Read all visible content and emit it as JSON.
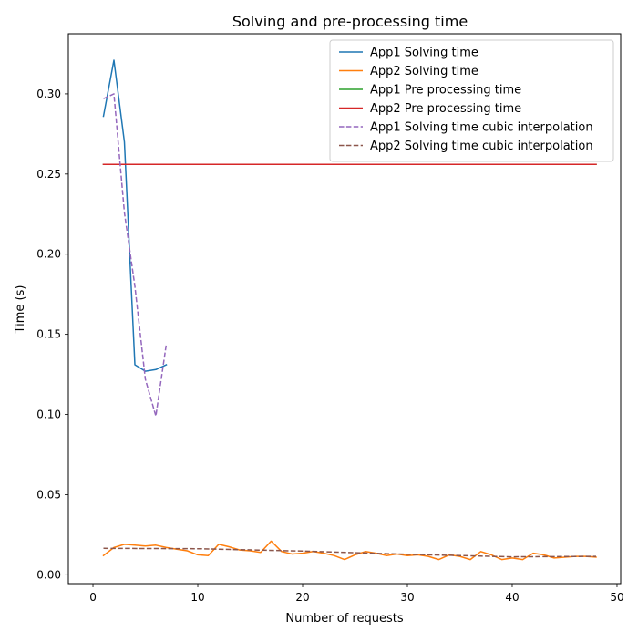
{
  "chart_data": {
    "type": "line",
    "title": "Solving and pre-processing time",
    "xlabel": "Number of requests",
    "ylabel": "Time (s)",
    "xlim": [
      -2.35,
      50.35
    ],
    "ylim": [
      -0.0055,
      0.3375
    ],
    "xticks": [
      0,
      10,
      20,
      30,
      40,
      50
    ],
    "yticks": [
      0.0,
      0.05,
      0.1,
      0.15,
      0.2,
      0.25,
      0.3
    ],
    "ytick_labels": [
      "0.00",
      "0.05",
      "0.10",
      "0.15",
      "0.20",
      "0.25",
      "0.30"
    ],
    "grid": false,
    "legend_position": "upper right",
    "series": [
      {
        "name": "App1 Solving time",
        "color": "#1f77b4",
        "dash": "solid",
        "x": [
          1,
          2,
          3,
          4,
          5,
          6,
          7
        ],
        "y": [
          0.286,
          0.321,
          0.27,
          0.131,
          0.127,
          0.128,
          0.131
        ]
      },
      {
        "name": "App2 Solving time",
        "color": "#ff7f0e",
        "dash": "solid",
        "x": [
          1,
          2,
          3,
          4,
          5,
          6,
          7,
          8,
          9,
          10,
          11,
          12,
          13,
          14,
          15,
          16,
          17,
          18,
          19,
          20,
          21,
          22,
          23,
          24,
          25,
          26,
          27,
          28,
          29,
          30,
          31,
          32,
          33,
          34,
          35,
          36,
          37,
          38,
          39,
          40,
          41,
          42,
          43,
          44,
          45,
          46,
          47,
          48
        ],
        "y": [
          0.012,
          0.017,
          0.019,
          0.0185,
          0.018,
          0.0185,
          0.017,
          0.016,
          0.015,
          0.0125,
          0.012,
          0.019,
          0.0175,
          0.0155,
          0.015,
          0.014,
          0.021,
          0.0145,
          0.013,
          0.0135,
          0.0145,
          0.0135,
          0.012,
          0.0095,
          0.0125,
          0.0145,
          0.0135,
          0.012,
          0.013,
          0.012,
          0.0125,
          0.0115,
          0.0095,
          0.0125,
          0.0115,
          0.0095,
          0.0145,
          0.0125,
          0.0095,
          0.0105,
          0.0095,
          0.0135,
          0.0125,
          0.0105,
          0.011,
          0.0115,
          0.0115,
          0.011
        ]
      },
      {
        "name": "App1 Pre processing time",
        "color": "#2ca02c",
        "dash": "solid",
        "x": [
          1,
          48
        ],
        "y": [
          0.256,
          0.256
        ]
      },
      {
        "name": "App2 Pre processing time",
        "color": "#d62728",
        "dash": "solid",
        "x": [
          1,
          48
        ],
        "y": [
          0.256,
          0.256
        ]
      },
      {
        "name": "App1 Solving time cubic interpolation",
        "color": "#9467bd",
        "dash": "dashed",
        "x": [
          1,
          2,
          3,
          4,
          5,
          6,
          7
        ],
        "y": [
          0.297,
          0.3,
          0.226,
          0.18,
          0.122,
          0.099,
          0.144
        ]
      },
      {
        "name": "App2 Solving time cubic interpolation",
        "color": "#8c564b",
        "dash": "dashed",
        "x": [
          1,
          10,
          20,
          30,
          40,
          48
        ],
        "y": [
          0.0165,
          0.0163,
          0.0148,
          0.0128,
          0.0112,
          0.0115
        ]
      }
    ]
  }
}
